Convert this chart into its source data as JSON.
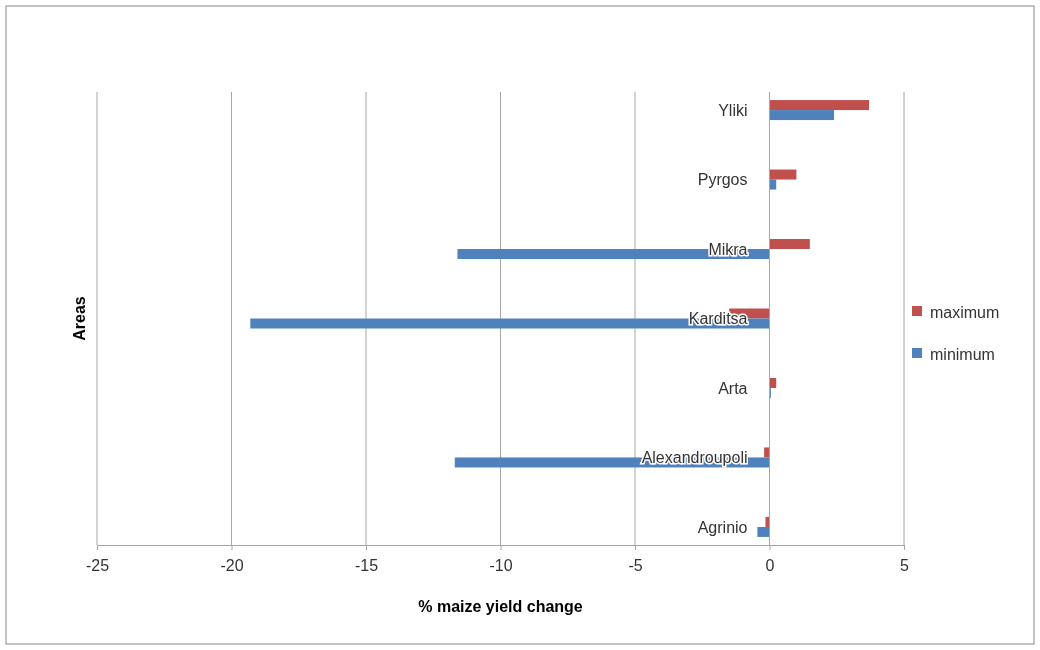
{
  "chart_data": {
    "type": "bar",
    "orientation": "horizontal",
    "xlabel": "% maize yield change",
    "ylabel": "Areas",
    "categories": [
      "Yliki",
      "Pyrgos",
      "Mikra",
      "Karditsa",
      "Arta",
      "Alexandroupoli",
      "Agrinio"
    ],
    "series": [
      {
        "name": "maximum",
        "color": "#c0504d",
        "values": [
          3.7,
          1.0,
          1.5,
          -1.5,
          0.25,
          -0.2,
          -0.15
        ]
      },
      {
        "name": "minimum",
        "color": "#4f81bd",
        "values": [
          2.4,
          0.25,
          -11.6,
          -19.3,
          0.05,
          -11.7,
          -0.45
        ]
      }
    ],
    "xlim": [
      -25,
      5
    ],
    "xticks": [
      -25,
      -20,
      -15,
      -10,
      -5,
      0,
      5
    ],
    "grid": "x",
    "legend": "right"
  }
}
